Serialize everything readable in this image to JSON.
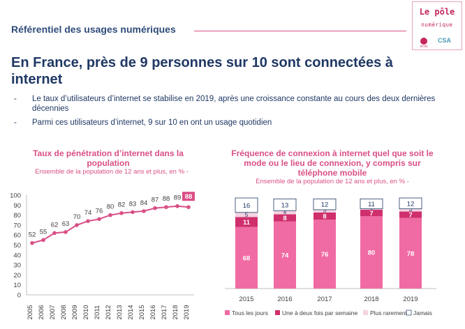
{
  "header": {
    "title": "Référentiel des usages numériques"
  },
  "logo": {
    "title": "Le pôle",
    "subtitle": "numérique",
    "arcep": "arcep",
    "csa": "CSA"
  },
  "main_title": "En France, près de 9 personnes sur 10 sont connectées à internet",
  "bullets": [
    "Le taux d’utilisateurs d’internet se stabilise en 2019, après une croissance constante au cours des deux dernières décennies",
    "Parmi ces utilisateurs d’internet, 9 sur 10 en ont un usage quotidien"
  ],
  "colors": {
    "accent": "#d94f86",
    "title": "#1f3864"
  },
  "chart_data": [
    {
      "type": "line",
      "title": "Taux de pénétration d’internet dans la population",
      "subtitle": "Ensemble de la population de 12 ans et plus, en % -",
      "x": [
        "2005",
        "2006",
        "2007",
        "2008",
        "2009",
        "2010",
        "2011",
        "2012",
        "2013",
        "2014",
        "2015",
        "2016",
        "2017",
        "2018",
        "2019"
      ],
      "values": [
        52,
        55,
        62,
        63,
        70,
        74,
        76,
        80,
        82,
        83,
        84,
        87,
        88,
        89,
        88
      ],
      "highlight_last": true,
      "ylim": [
        0,
        100
      ],
      "yticks": [
        0,
        10,
        20,
        30,
        40,
        50,
        60,
        70,
        80,
        90,
        100
      ],
      "grid": false,
      "color": "#d94f86"
    },
    {
      "type": "bar",
      "stacked": true,
      "title": "Fréquence de connexion à internet quel que soit le mode ou le lieu de connexion, y compris sur téléphone mobile",
      "subtitle": "Ensemble de la population de 12 ans et plus, en % -",
      "categories": [
        "2015",
        "2016",
        "2017",
        "2018",
        "2019"
      ],
      "series": [
        {
          "name": "Tous les jours",
          "values": [
            68,
            74,
            76,
            80,
            78
          ],
          "color": "#f06ba3"
        },
        {
          "name": "Une à deux fois par semaine",
          "values": [
            11,
            8,
            8,
            7,
            7
          ],
          "color": "#cf2f6c"
        },
        {
          "name": "Plus rarement",
          "values": [
            5,
            4,
            3,
            1,
            3
          ],
          "color": "#f3d3e2"
        },
        {
          "name": "Jamais",
          "values": [
            16,
            13,
            12,
            11,
            12
          ],
          "color": "#ffffff"
        }
      ],
      "ylim": [
        0,
        100
      ],
      "legend": "bottom"
    }
  ]
}
